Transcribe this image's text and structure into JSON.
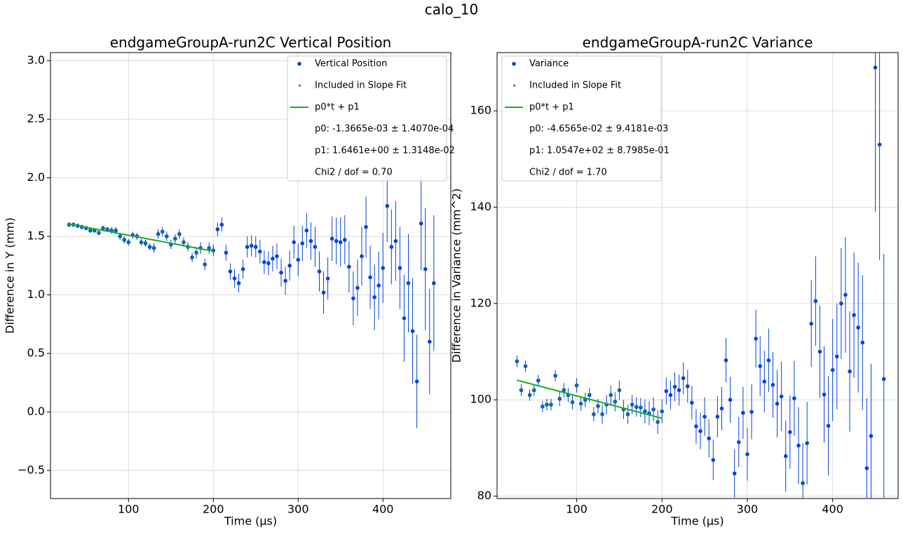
{
  "title": "calo_10",
  "chart_data": [
    {
      "type": "scatter",
      "title": "endgameGroupA-run2C Vertical Position",
      "x_label": "Time (µs)",
      "y_label": "Difference in Y (mm)",
      "xlim": [
        8,
        480
      ],
      "ylim": [
        -0.74,
        3.07
      ],
      "xticks": [
        100,
        200,
        300,
        400
      ],
      "yticks": [
        {
          "value": -0.5,
          "label": "−0.5"
        },
        {
          "value": 0,
          "label": "0.0"
        },
        {
          "value": 0.5,
          "label": "0.5"
        },
        {
          "value": 1,
          "label": "1.0"
        },
        {
          "value": 1.5,
          "label": "1.5"
        },
        {
          "value": 2,
          "label": "2.0"
        },
        {
          "value": 2.5,
          "label": "2.5"
        },
        {
          "value": 3,
          "label": "3.0"
        }
      ],
      "grid": true,
      "legend": "upper right",
      "x": [
        30,
        35,
        40,
        45,
        50,
        55,
        60,
        65,
        70,
        75,
        80,
        85,
        90,
        95,
        100,
        105,
        110,
        115,
        120,
        125,
        130,
        135,
        140,
        145,
        150,
        155,
        160,
        165,
        170,
        175,
        180,
        185,
        190,
        195,
        200,
        205,
        210,
        215,
        220,
        225,
        230,
        235,
        240,
        245,
        250,
        255,
        260,
        265,
        270,
        275,
        280,
        285,
        290,
        295,
        300,
        305,
        310,
        315,
        320,
        325,
        330,
        335,
        340,
        345,
        350,
        355,
        360,
        365,
        370,
        375,
        380,
        385,
        390,
        395,
        400,
        405,
        410,
        415,
        420,
        425,
        430,
        435,
        440,
        445,
        450,
        455,
        460
      ],
      "series": [
        {
          "name": "Vertical Position",
          "color": "#0343df",
          "values": [
            1.6,
            1.6,
            1.59,
            1.58,
            1.57,
            1.55,
            1.55,
            1.53,
            1.57,
            1.56,
            1.55,
            1.55,
            1.5,
            1.47,
            1.45,
            1.51,
            1.5,
            1.45,
            1.44,
            1.41,
            1.4,
            1.52,
            1.54,
            1.5,
            1.43,
            1.48,
            1.52,
            1.45,
            1.41,
            1.32,
            1.36,
            1.4,
            1.26,
            1.4,
            1.38,
            1.56,
            1.6,
            1.36,
            1.2,
            1.14,
            1.1,
            1.22,
            1.41,
            1.42,
            1.41,
            1.37,
            1.28,
            1.27,
            1.31,
            1.33,
            1.19,
            1.12,
            1.25,
            1.45,
            1.3,
            1.44,
            1.55,
            1.46,
            1.41,
            1.2,
            1.02,
            1.14,
            1.48,
            1.46,
            1.45,
            1.47,
            1.24,
            0.97,
            1.06,
            1.33,
            1.58,
            1.15,
            0.98,
            1.08,
            1.23,
            1.76,
            1.41,
            1.46,
            1.23,
            0.8,
            1.1,
            0.69,
            0.26,
            1.61,
            1.22,
            0.6,
            1.1
          ],
          "errors": [
            0.02,
            0.02,
            0.02,
            0.02,
            0.02,
            0.02,
            0.02,
            0.02,
            0.02,
            0.02,
            0.03,
            0.03,
            0.03,
            0.03,
            0.03,
            0.03,
            0.03,
            0.03,
            0.03,
            0.03,
            0.04,
            0.04,
            0.04,
            0.04,
            0.04,
            0.04,
            0.04,
            0.04,
            0.04,
            0.04,
            0.05,
            0.05,
            0.05,
            0.05,
            0.05,
            0.06,
            0.06,
            0.07,
            0.07,
            0.08,
            0.08,
            0.08,
            0.09,
            0.09,
            0.09,
            0.1,
            0.1,
            0.1,
            0.11,
            0.11,
            0.12,
            0.12,
            0.13,
            0.14,
            0.14,
            0.15,
            0.15,
            0.16,
            0.17,
            0.17,
            0.18,
            0.18,
            0.19,
            0.2,
            0.21,
            0.21,
            0.22,
            0.23,
            0.24,
            0.25,
            0.26,
            0.27,
            0.28,
            0.29,
            0.3,
            0.31,
            0.32,
            0.34,
            0.35,
            0.37,
            0.42,
            0.45,
            0.4,
            0.4,
            0.52,
            0.45,
            0.58
          ]
        },
        {
          "name": "Included in Slope Fit",
          "color": "#15b01a",
          "marker": "square"
        },
        {
          "name": "p0*t + p1",
          "color": "#15b01a",
          "x": [
            30,
            200
          ],
          "values": [
            1.605,
            1.373
          ]
        }
      ],
      "annotations": [
        "p0: -1.3665e-03 ± 1.4070e-04",
        "p1: 1.6461e+00 ± 1.3148e-02",
        "Chi2 / dof = 0.70"
      ]
    },
    {
      "type": "scatter",
      "title": "endgameGroupA-run2C Variance",
      "x_label": "Time (µs)",
      "y_label": "Difference in Variance (mm^2)",
      "xlim": [
        6.7,
        476.7
      ],
      "ylim": [
        79.5,
        172.1
      ],
      "xticks": [
        100,
        200,
        300,
        400
      ],
      "yticks": [
        80,
        100,
        120,
        140,
        160
      ],
      "grid": true,
      "legend": "upper left",
      "x": [
        30,
        35,
        40,
        45,
        50,
        55,
        60,
        65,
        70,
        75,
        80,
        85,
        90,
        95,
        100,
        105,
        110,
        115,
        120,
        125,
        130,
        135,
        140,
        145,
        150,
        155,
        160,
        165,
        170,
        175,
        180,
        185,
        190,
        195,
        200,
        205,
        210,
        215,
        220,
        225,
        230,
        235,
        240,
        245,
        250,
        255,
        260,
        265,
        270,
        275,
        280,
        285,
        290,
        295,
        300,
        305,
        310,
        315,
        320,
        325,
        330,
        335,
        340,
        345,
        350,
        355,
        360,
        365,
        370,
        375,
        380,
        385,
        390,
        395,
        400,
        405,
        410,
        415,
        420,
        425,
        430,
        435,
        440,
        445,
        450,
        455,
        460
      ],
      "series": [
        {
          "name": "Variance",
          "color": "#0343df",
          "values": [
            108,
            102,
            107,
            101,
            102,
            104,
            98.6,
            99,
            99,
            105,
            100.2,
            102,
            101,
            99.5,
            103,
            99.2,
            100,
            101,
            97,
            98.7,
            97,
            99,
            101,
            99.6,
            102,
            98,
            97,
            99,
            98.5,
            98.4,
            97.6,
            97.2,
            98,
            95.4,
            97.6,
            101.8,
            101,
            102.7,
            102,
            104.5,
            102.8,
            99.4,
            94.5,
            93.5,
            96.5,
            92,
            87.5,
            96.5,
            98.2,
            108.2,
            100,
            84.7,
            91.2,
            97.3,
            88.7,
            97.5,
            112.7,
            107,
            103.8,
            108.2,
            103.1,
            99.2,
            100.7,
            88.3,
            93.3,
            100.3,
            90.5,
            82.7,
            91,
            115.8,
            120.5,
            110,
            101.1,
            94.6,
            106.2,
            109,
            120,
            121.8,
            105.9,
            117.6,
            115,
            111.9,
            85.8,
            92.5,
            169,
            153,
            104.3
          ],
          "errors": [
            1.2,
            1.2,
            1.2,
            1.2,
            1.2,
            1.2,
            1.2,
            1.2,
            1.2,
            1.2,
            1.5,
            1.5,
            1.5,
            1.5,
            1.5,
            1.5,
            1.5,
            1.5,
            1.5,
            1.5,
            2,
            2,
            2,
            2,
            2,
            2,
            2,
            2,
            2,
            2,
            2.5,
            2.5,
            2.5,
            2.5,
            2.5,
            2.8,
            3,
            3,
            3.2,
            3.3,
            3.4,
            3.5,
            3.6,
            3.8,
            4,
            4,
            4.2,
            4.3,
            4.5,
            4.6,
            4.8,
            5,
            5.2,
            5.4,
            5.5,
            5.7,
            6,
            6.2,
            6.4,
            6.6,
            6.8,
            7,
            7.2,
            7.4,
            7.6,
            7.8,
            8,
            8.3,
            8.6,
            9,
            9.3,
            9.6,
            10,
            10.3,
            10.6,
            11,
            11.5,
            12,
            12.5,
            13,
            13.5,
            14,
            14.5,
            15,
            30,
            24,
            26
          ]
        },
        {
          "name": "Included in Slope Fit",
          "color": "#15b01a",
          "marker": "square"
        },
        {
          "name": "p0*t + p1",
          "color": "#15b01a",
          "x": [
            30,
            200
          ],
          "values": [
            104.07,
            96.16
          ]
        }
      ],
      "annotations": [
        "p0: -4.6565e-02 ± 9.4181e-03",
        "p1: 1.0547e+02 ± 8.7985e-01",
        "Chi2 / dof = 1.70"
      ]
    }
  ]
}
